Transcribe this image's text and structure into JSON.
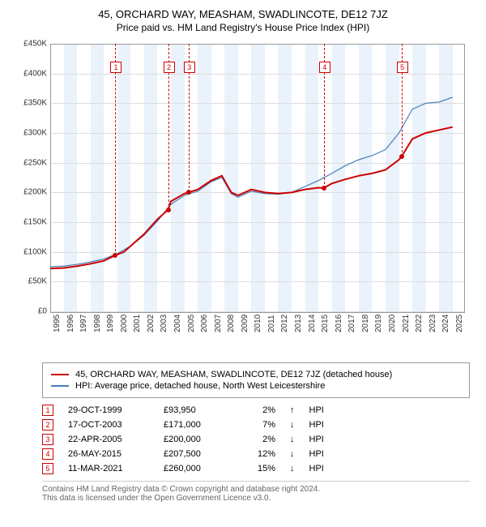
{
  "title": "45, ORCHARD WAY, MEASHAM, SWADLINCOTE, DE12 7JZ",
  "subtitle": "Price paid vs. HM Land Registry's House Price Index (HPI)",
  "chart": {
    "type": "line",
    "x_axis": {
      "min": 1995,
      "max": 2025.8,
      "ticks": [
        1995,
        1996,
        1997,
        1998,
        1999,
        2000,
        2001,
        2002,
        2003,
        2004,
        2005,
        2006,
        2007,
        2008,
        2009,
        2010,
        2011,
        2012,
        2013,
        2014,
        2015,
        2016,
        2017,
        2018,
        2019,
        2020,
        2021,
        2022,
        2023,
        2024,
        2025
      ]
    },
    "y_axis": {
      "min": 0,
      "max": 450000,
      "tick_step": 50000,
      "format": "£{v}K",
      "ticks_labels": [
        "£0",
        "£50K",
        "£100K",
        "£150K",
        "£200K",
        "£250K",
        "£300K",
        "£350K",
        "£400K",
        "£450K"
      ]
    },
    "grid_color": "#dddddd",
    "band_color": "#eaf2fb",
    "background": "#ffffff",
    "series": [
      {
        "name": "property",
        "label": "45, ORCHARD WAY, MEASHAM, SWADLINCOTE, DE12 7JZ (detached house)",
        "color": "#cc0000",
        "width": 2,
        "points": [
          [
            1995,
            72000
          ],
          [
            1996,
            73000
          ],
          [
            1997,
            76000
          ],
          [
            1998,
            80000
          ],
          [
            1999,
            85000
          ],
          [
            1999.83,
            93950
          ],
          [
            2000.5,
            100000
          ],
          [
            2001,
            110000
          ],
          [
            2002,
            130000
          ],
          [
            2003,
            155000
          ],
          [
            2003.79,
            171000
          ],
          [
            2004,
            185000
          ],
          [
            2005,
            198000
          ],
          [
            2005.31,
            200000
          ],
          [
            2006,
            205000
          ],
          [
            2007,
            220000
          ],
          [
            2007.8,
            228000
          ],
          [
            2008.5,
            200000
          ],
          [
            2009,
            195000
          ],
          [
            2010,
            205000
          ],
          [
            2011,
            200000
          ],
          [
            2012,
            198000
          ],
          [
            2013,
            200000
          ],
          [
            2014,
            205000
          ],
          [
            2015,
            208000
          ],
          [
            2015.4,
            207500
          ],
          [
            2016,
            215000
          ],
          [
            2017,
            222000
          ],
          [
            2018,
            228000
          ],
          [
            2019,
            232000
          ],
          [
            2020,
            238000
          ],
          [
            2021,
            255000
          ],
          [
            2021.19,
            260000
          ],
          [
            2022,
            290000
          ],
          [
            2023,
            300000
          ],
          [
            2024,
            305000
          ],
          [
            2025,
            310000
          ]
        ]
      },
      {
        "name": "hpi",
        "label": "HPI: Average price, detached house, North West Leicestershire",
        "color": "#4a7ebb",
        "width": 1.2,
        "points": [
          [
            1995,
            75000
          ],
          [
            1996,
            76000
          ],
          [
            1997,
            79000
          ],
          [
            1998,
            83000
          ],
          [
            1999,
            88000
          ],
          [
            2000,
            97000
          ],
          [
            2001,
            110000
          ],
          [
            2002,
            128000
          ],
          [
            2003,
            152000
          ],
          [
            2004,
            180000
          ],
          [
            2005,
            195000
          ],
          [
            2006,
            202000
          ],
          [
            2007,
            218000
          ],
          [
            2007.8,
            225000
          ],
          [
            2008.5,
            198000
          ],
          [
            2009,
            192000
          ],
          [
            2010,
            202000
          ],
          [
            2011,
            198000
          ],
          [
            2012,
            197000
          ],
          [
            2013,
            200000
          ],
          [
            2014,
            210000
          ],
          [
            2015,
            220000
          ],
          [
            2016,
            232000
          ],
          [
            2017,
            245000
          ],
          [
            2018,
            255000
          ],
          [
            2019,
            262000
          ],
          [
            2020,
            272000
          ],
          [
            2021,
            300000
          ],
          [
            2022,
            340000
          ],
          [
            2023,
            350000
          ],
          [
            2024,
            352000
          ],
          [
            2025,
            360000
          ]
        ]
      }
    ],
    "markers": [
      {
        "n": 1,
        "x": 1999.83,
        "y": 93950
      },
      {
        "n": 2,
        "x": 2003.79,
        "y": 171000
      },
      {
        "n": 3,
        "x": 2005.31,
        "y": 200000
      },
      {
        "n": 4,
        "x": 2015.4,
        "y": 207500
      },
      {
        "n": 5,
        "x": 2021.19,
        "y": 260000
      }
    ]
  },
  "legend": [
    {
      "color": "#cc0000",
      "label": "45, ORCHARD WAY, MEASHAM, SWADLINCOTE, DE12 7JZ (detached house)"
    },
    {
      "color": "#4a7ebb",
      "label": "HPI: Average price, detached house, North West Leicestershire"
    }
  ],
  "transactions": [
    {
      "n": 1,
      "date": "29-OCT-1999",
      "price": "£93,950",
      "pct": "2%",
      "arrow": "↑",
      "rel": "HPI"
    },
    {
      "n": 2,
      "date": "17-OCT-2003",
      "price": "£171,000",
      "pct": "7%",
      "arrow": "↓",
      "rel": "HPI"
    },
    {
      "n": 3,
      "date": "22-APR-2005",
      "price": "£200,000",
      "pct": "2%",
      "arrow": "↓",
      "rel": "HPI"
    },
    {
      "n": 4,
      "date": "26-MAY-2015",
      "price": "£207,500",
      "pct": "12%",
      "arrow": "↓",
      "rel": "HPI"
    },
    {
      "n": 5,
      "date": "11-MAR-2021",
      "price": "£260,000",
      "pct": "15%",
      "arrow": "↓",
      "rel": "HPI"
    }
  ],
  "footer": {
    "line1": "Contains HM Land Registry data © Crown copyright and database right 2024.",
    "line2": "This data is licensed under the Open Government Licence v3.0."
  }
}
